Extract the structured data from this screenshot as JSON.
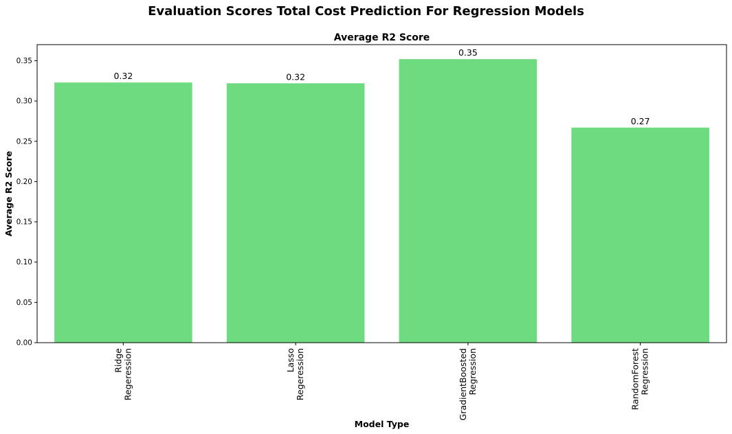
{
  "figure": {
    "title": "Evaluation Scores Total Cost Prediction For Regression Models"
  },
  "chart_data": {
    "type": "bar",
    "title": "Average R2 Score",
    "xlabel": "Model Type",
    "ylabel": "Average R2 Score",
    "categories": [
      [
        "Ridge",
        "Regeression"
      ],
      [
        "Lasso",
        "Regeression"
      ],
      [
        "GradientBoosted",
        "Regression"
      ],
      [
        "RandomForest",
        "Regression"
      ]
    ],
    "values": [
      0.323,
      0.322,
      0.352,
      0.267
    ],
    "data_labels": [
      "0.32",
      "0.32",
      "0.35",
      "0.27"
    ],
    "ylim": [
      0,
      0.37
    ],
    "yticks": [
      "0.00",
      "0.05",
      "0.10",
      "0.15",
      "0.20",
      "0.25",
      "0.30",
      "0.35"
    ],
    "ytick_values": [
      0,
      0.05,
      0.1,
      0.15,
      0.2,
      0.25,
      0.3,
      0.35
    ],
    "bar_color": "#6fdb80",
    "grid": false,
    "legend": "none"
  }
}
